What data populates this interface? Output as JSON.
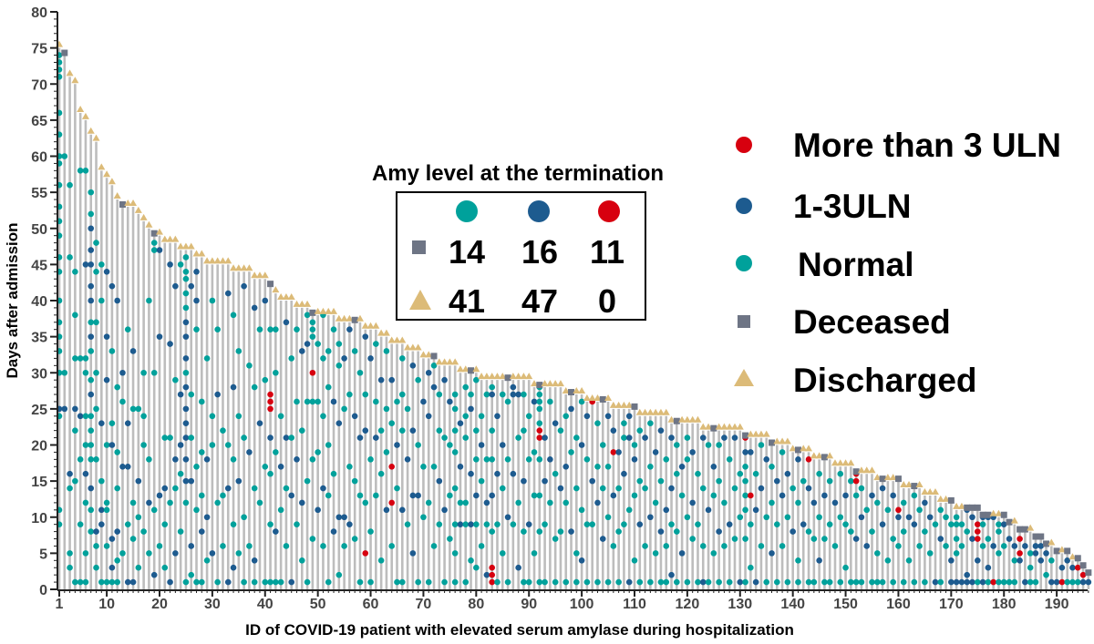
{
  "chart_data": {
    "type": "scatter",
    "xlabel": "ID of COVID-19 patient with elevated serum amylase during hospitalization",
    "ylabel": "Days after admission",
    "xlim": [
      1,
      196
    ],
    "ylim": [
      0,
      80
    ],
    "x_ticks": [
      "1",
      "10",
      "20",
      "30",
      "40",
      "50",
      "60",
      "70",
      "80",
      "90",
      "100",
      "110",
      "120",
      "130",
      "140",
      "150",
      "160",
      "170",
      "180",
      "190"
    ],
    "y_ticks": [
      "0",
      "5",
      "10",
      "15",
      "20",
      "25",
      "30",
      "35",
      "40",
      "45",
      "50",
      "55",
      "60",
      "65",
      "70",
      "75",
      "80"
    ],
    "colors": {
      "normal": "#00a19b",
      "uln1_3": "#1d5b8f",
      "gt3uln": "#d7000f",
      "deceased": "#6e7585",
      "discharged": "#dcbb78",
      "stem": "#bdbdbd"
    },
    "legend": {
      "placement": "right",
      "items": [
        {
          "key": "r",
          "label": "More than 3 ULN",
          "marker": "circle"
        },
        {
          "key": "b",
          "label": "1-3ULN",
          "marker": "circle"
        },
        {
          "key": "n",
          "label": "Normal",
          "marker": "circle"
        },
        {
          "key": "deceased",
          "label": "Deceased",
          "marker": "square"
        },
        {
          "key": "discharged",
          "label": "Discharged",
          "marker": "triangle"
        }
      ]
    },
    "inset_table": {
      "title": "Amy level at the termination",
      "columns": [
        "n",
        "b",
        "r"
      ],
      "rows": [
        {
          "outcome": "deceased",
          "values": [
            "14",
            "16",
            "11"
          ]
        },
        {
          "outcome": "discharged",
          "values": [
            "41",
            "47",
            "0"
          ]
        }
      ]
    },
    "end_day": [
      75,
      74,
      71,
      70,
      66,
      65,
      63,
      62,
      58,
      57,
      56,
      54,
      53,
      53,
      53,
      52,
      51,
      50,
      49,
      49,
      48,
      48,
      48,
      47,
      47,
      47,
      46,
      46,
      45,
      45,
      45,
      45,
      45,
      44,
      44,
      44,
      44,
      43,
      43,
      43,
      42,
      41,
      40,
      40,
      40,
      39,
      39,
      39,
      38,
      38,
      38,
      38,
      38,
      37,
      37,
      37,
      37,
      37,
      36,
      36,
      36,
      35,
      35,
      34,
      34,
      34,
      33,
      33,
      33,
      32,
      32,
      32,
      31,
      31,
      31,
      31,
      30,
      30,
      30,
      30,
      29,
      29,
      29,
      29,
      29,
      29,
      29,
      29,
      29,
      29,
      28,
      28,
      28,
      28,
      28,
      28,
      27,
      27,
      27,
      27,
      26,
      26,
      26,
      26,
      26,
      25,
      25,
      25,
      25,
      25,
      24,
      24,
      24,
      24,
      24,
      24,
      23,
      23,
      23,
      23,
      23,
      23,
      22,
      22,
      22,
      22,
      22,
      22,
      22,
      22,
      21,
      21,
      21,
      21,
      21,
      20,
      20,
      20,
      20,
      19,
      19,
      19,
      19,
      18,
      18,
      18,
      18,
      17,
      17,
      17,
      17,
      16,
      16,
      16,
      16,
      15,
      15,
      15,
      15,
      15,
      14,
      14,
      14,
      14,
      13,
      13,
      13,
      12,
      12,
      12,
      11,
      11,
      11,
      11,
      11,
      10,
      10,
      10,
      10,
      10,
      9,
      9,
      8,
      8,
      8,
      7,
      7,
      6,
      6,
      5,
      5,
      5,
      4,
      4,
      3,
      2
    ],
    "deceased_ids": [
      2,
      13,
      19,
      41,
      49,
      57,
      72,
      79,
      86,
      92,
      98,
      104,
      110,
      118,
      125,
      131,
      136,
      141,
      146,
      152,
      157,
      160,
      163,
      170,
      173,
      174,
      175,
      176,
      177,
      180,
      181,
      183,
      184,
      186,
      187,
      188,
      190,
      192,
      194,
      195,
      196
    ],
    "dots_note_codes": {
      "n": "Normal",
      "b": "1-3ULN",
      "r": "More than 3 ULN"
    },
    "dots": [
      "74n 73n 72n 71n 66n 63n 60n 59n 56n 53n 51n 49n 46n 44n 40n 37n 35n 33n 30n 25b 24n 11n 9n",
      "60n 30n 25b",
      "56n 46n 16b 14n 5n 3n",
      "44n 38n 32n 25b 22n 15n 1n",
      "58n 32n 24b 18n 9n 1n",
      "58n 45b 32n 30n 24n 20n 16b 12n 5n 1n",
      "55n 52n 50b 47b 45b 42b 40b 37n 35b 33n 29n 27b 24n 22n 20n 18n 14b 11n 8n",
      "48n 44n 37n 30n 25n 18n 8b 6n 3n",
      "45n 40n 23b 15n 11b 9b 1n",
      "44b 35b 29b 20n 12n 11n 6n 1n",
      "42b 33n 23n 20b 7b 3b 1n",
      "40b 28n 19n 14n 8b 4n 1n",
      "30b 26n 17b 5n",
      "36n 23b 17b 9n 1b",
      "33b 25n 12n 7n 1b",
      "25n 15b 10n 3n",
      "30n 24n 20n 8n",
      "40n 18n 12b 5n",
      "48n 47n 30n 11n 2b",
      "47b 35b 13b 6n",
      "21n 14b 9n 3n",
      "45b 34b 21n 12n 1b",
      "42b 29n 18b 14n 5b",
      "45n 27b 20b 16n 8n",
      "46n 44n 43n 41n 39n 37b 35b 32b 30n 28b 25b 23b 21b 18b 15b 12n 1n",
      "42b 27n 21n 15b 6b 2n",
      "44b 40b 36n 17n 11n 1n",
      "26n 19n 13n 8b 1n",
      "32n 18b 10b 4n",
      "40n 24n 20n 5b",
      "36n 27b 12n 1n",
      "22n 13n 6n",
      "41b 20n 14b 1b",
      "38n 28b 18n 9n 3b",
      "33n 24n 15b 5n",
      "42b 21n 10n 1n",
      "31n 19b 6n",
      "39b 28n 14n 4b 1n",
      "36n 23b 12n",
      "40b 29n 17n 1n",
      "36n 27r 26r 25r 21b 16n 9n 1n",
      "36n 30n 19n 8b 1n",
      "24n 17b 11n 1n",
      "37b 21b 14n 6n",
      "32n 21n 13b 1b",
      "36n 26n 18b 9n",
      "33b 22n 12b 4n",
      "38n 34b 26n 15n 1n",
      "37n 36n 35n 30r 26n 18n 7n",
      "34n 26n 19n 11b",
      "38n 32n 24n 14b 6n",
      "33n 28n 20n 13n 1n",
      "36n 26b 16n 8b",
      "34n 31n 23b 10b 2n",
      "32b 25n 10b 6n",
      "36b 27n 17n 9b",
      "33n 24b 15n 7n",
      "30n 21b 13n 1n",
      "35b 27n 22b 12n 5r",
      "32b 18n 8n 1n",
      "34n 26n 21b 13n",
      "29b 22n 16n 4n",
      "33n 25n 19n 11b",
      "29b 23n 17r 12r 6n",
      "26n 20b 14n 1n",
      "32n 27n 22n 11b 1n",
      "25n 18b 9n",
      "31b 22b 13b 5b",
      "29n 20n 13b 1n",
      "26b 17n 10n",
      "30b 24b 12n 1n",
      "31n 28b 17n 6n",
      "27n 22n 15b 9n",
      "29b 21n 11b 1n",
      "26b 20n 13n 7n",
      "27n 25n 22n 19n 14n 9n 5n 1n",
      "23b 17b 12n 9b",
      "28n 24n 21n 12n 9n 1n",
      "27n 25b 16b 9b 4n",
      "29n 22n 18n 13b 9n 3n",
      "24n 20b 15n 6n",
      "27n 18n 12b 9n 2b",
      "28n 27b 22n 18n 13b 8n 3r 2r 1r",
      "24b 16b 9n 1n",
      "27n 20b 14n 5n",
      "26n 18n 10b 1n",
      "28b 27b 16b 9n",
      "27b 21n 12n 3b",
      "27n 22n 15b 8n 1n",
      "24n 18n 9b 1n",
      "26b 19n 13n 5n",
      "28n 27n 26n 25n 23n 22r 21r 18n 13n 8n 1n",
      "21b 15b 9n 1n",
      "26n 18b 12n",
      "23b 16n 7n 1n",
      "22n 14b 8n",
      "24n 17b 12n 1n",
      "25b 19n 8b",
      "21n 14n 5n 1n",
      "26n 20b 11n 4b",
      "24b 18n 9n 1n",
      "26r 15b 9n",
      "23n 17n 12b 1n",
      "20n 14n 7b",
      "24b 17n 10n 1n",
      "22b 19r 13b 6n",
      "19b 14n 8n 1n",
      "23n 21n 16b 9n",
      "24b 21b 11n 1b",
      "20n 18b 13n 4n",
      "22n 15n 9b 1n",
      "21b 14n 6n",
      "23n 17n 10b 1n",
      "19b 12n 5n",
      "22b 15n 8b 1n",
      "18n 11b 6n 1n",
      "21b 14b 9n 2b",
      "20n 16n 8n 1n",
      "17b 13n 5b",
      "21n 18n 10n 1n",
      "19b 12b 7n",
      "16n 9n 1n",
      "21b 14n 6n 1b",
      "20n 11b 1n",
      "17b 13n 5n",
      "20n 15n 8b 1n",
      "21b 12n 6n",
      "18n 9b 1n",
      "21b 14n 7n",
      "16n 10n 1b",
      "21r 19b 17n 15n 13n 11n 7n 1n",
      "19b 13r 9n 3n",
      "16n 11b 1b",
      "20n 14b 6n",
      "18b 10n 1n",
      "17n 12n 5b",
      "15b 9n 1n",
      "19n 13b 6n",
      "16b 10n 1n",
      "14n 8b",
      "18b 12n 4n 1n",
      "15n 9b",
      "18r 14b 8n 1n",
      "12b 7n 1n",
      "16n 10n 4b",
      "13b 7n 1n",
      "15n 9n 1n",
      "12b 6n",
      "16n 10n 1n",
      "13b 9n 3n",
      "15n 8n 1n",
      "16r 15r 13n 7b 1n",
      "14n 10b 1n",
      "11n 6b",
      "13b 8n 1n",
      "12n 5n 1n",
      "14b 9b 1n",
      "11n 4n",
      "13b 7n 1n",
      "11r 10b 6n",
      "12n 8n 1n",
      "10b 4n",
      "13n 9b 1n",
      "11n 6n",
      "12b 8n 1n",
      "10b 5n",
      "9n 1b",
      "11n 7b 1n",
      "10n 6n",
      "9n 4b 1b",
      "10n 9n 7n 5n 1b",
      "9n 6n 1b",
      "11b 8n 2b 1b",
      "10b 7b 1b",
      "9r 8r 7r 4b 1n",
      "10b 9n 6n 1b",
      "10b 7n 3b 1n",
      "10b 6b 1r",
      "9n 8n 5n 1n",
      "9b 6n 1n",
      "7b 1n",
      "6b 4n 1n",
      "7r 5r 4b",
      "6b 1b",
      "5n 3n 1n",
      "6b 5b 1n",
      "6b 4b",
      "5b 2n",
      "4n 1b",
      "1b",
      "3b 1r",
      "4b 1n",
      "3b 1n",
      "3r 1n",
      "2r 1b",
      "1b"
    ]
  }
}
